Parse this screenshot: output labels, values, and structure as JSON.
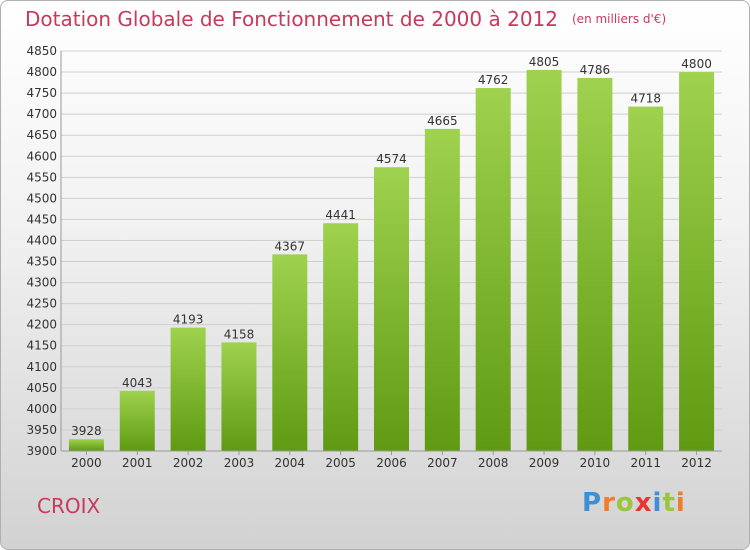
{
  "title": "Dotation Globale de Fonctionnement de 2000 à 2012",
  "subtitle": "(en milliers d'€)",
  "footer": {
    "city": "CROIX",
    "logo": {
      "text": "Proxiti",
      "letters": [
        {
          "ch": "P",
          "color": "#3d8fd6"
        },
        {
          "ch": "r",
          "color": "#f07d2a"
        },
        {
          "ch": "o",
          "color": "#9bc63c"
        },
        {
          "ch": "x",
          "color": "#e8352f"
        },
        {
          "ch": "i",
          "color": "#3d8fd6"
        },
        {
          "ch": "t",
          "color": "#9bc63c"
        },
        {
          "ch": "i",
          "color": "#f07d2a"
        }
      ]
    }
  },
  "chart_data": {
    "type": "bar",
    "title": "Dotation Globale de Fonctionnement de 2000 à 2012",
    "subtitle": "(en milliers d'€)",
    "categories": [
      "2000",
      "2001",
      "2002",
      "2003",
      "2004",
      "2005",
      "2006",
      "2007",
      "2008",
      "2009",
      "2010",
      "2011",
      "2012"
    ],
    "values": [
      3928,
      4043,
      4193,
      4158,
      4367,
      4441,
      4574,
      4665,
      4762,
      4805,
      4786,
      4718,
      4800
    ],
    "xlabel": "",
    "ylabel": "",
    "ylim": [
      3900,
      4850
    ],
    "yticks": [
      3900,
      3950,
      4000,
      4050,
      4100,
      4150,
      4200,
      4250,
      4300,
      4350,
      4400,
      4450,
      4500,
      4550,
      4600,
      4650,
      4700,
      4750,
      4800,
      4850
    ],
    "grid": true,
    "data_labels": true,
    "colors": {
      "bar_light": "#9fd24e",
      "bar_dark": "#5f9a12",
      "grid": "#cfcfcf",
      "title": "#c8395c"
    }
  }
}
